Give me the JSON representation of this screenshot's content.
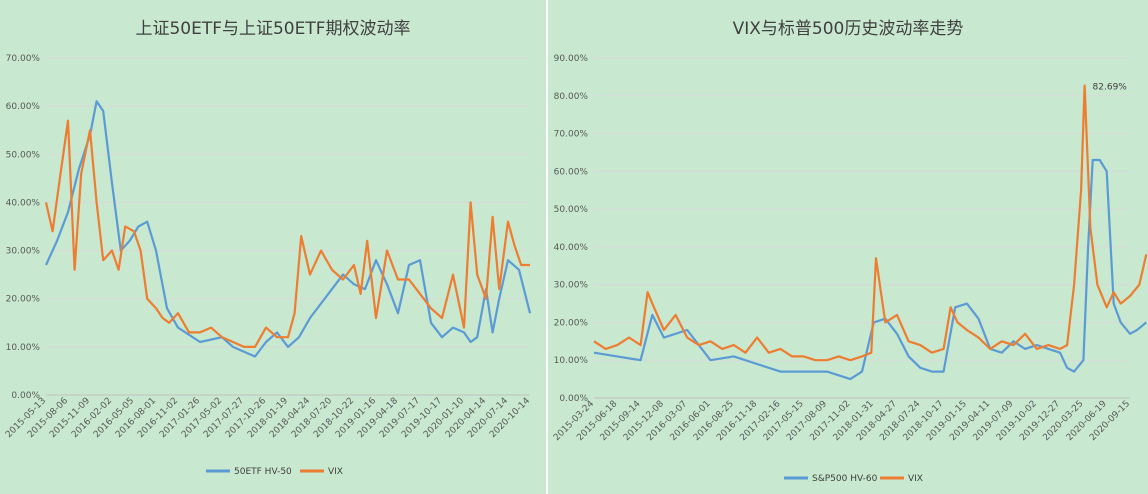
{
  "chart_data": [
    {
      "type": "line",
      "title": "上证50ETF与上证50ETF期权波动率",
      "ylim": [
        0,
        70
      ],
      "ytick_labels": [
        "0.00%",
        "10.00%",
        "20.00%",
        "30.00%",
        "40.00%",
        "50.00%",
        "60.00%",
        "70.00%"
      ],
      "xtick_labels": [
        "2015-05-13",
        "2015-08-06",
        "2015-11-09",
        "2016-02-02",
        "2016-05-05",
        "2016-08-01",
        "2016-11-02",
        "2017-01-26",
        "2017-05-02",
        "2017-07-27",
        "2017-10-26",
        "2018-01-19",
        "2018-04-24",
        "2018-07-20",
        "2018-10-22",
        "2019-01-16",
        "2019-04-18",
        "2019-07-17",
        "2019-10-17",
        "2020-01-10",
        "2020-04-14",
        "2020-07-14",
        "2020-10-14"
      ],
      "grid": true,
      "legend_position": "bottom",
      "series": [
        {
          "name": "50ETF HV-50",
          "color": "#5b9bd5",
          "x": [
            0,
            0.5,
            1,
            1.5,
            2,
            2.3,
            2.6,
            3,
            3.4,
            3.8,
            4.2,
            4.6,
            5,
            5.5,
            6,
            7,
            8,
            8.5,
            9,
            9.5,
            10,
            10.5,
            11,
            11.5,
            12,
            12.5,
            13,
            13.5,
            14,
            14.5,
            15,
            15.5,
            16,
            16.5,
            17,
            17.5,
            18,
            18.5,
            19,
            19.3,
            19.6,
            20,
            20.3,
            20.6,
            21,
            21.5,
            22
          ],
          "y": [
            27,
            32,
            38,
            47,
            54,
            61,
            59,
            44,
            30,
            32,
            35,
            36,
            30,
            18,
            14,
            11,
            12,
            10,
            9,
            8,
            11,
            13,
            10,
            12,
            16,
            19,
            22,
            25,
            23,
            22,
            28,
            23,
            17,
            27,
            28,
            15,
            12,
            14,
            13,
            11,
            12,
            22,
            13,
            20,
            28,
            26,
            17
          ]
        },
        {
          "name": "VIX",
          "color": "#ed7d31",
          "x": [
            0,
            0.3,
            0.6,
            1,
            1.3,
            1.6,
            2,
            2.3,
            2.6,
            3,
            3.3,
            3.6,
            4,
            4.3,
            4.6,
            5,
            5.3,
            5.6,
            6,
            6.5,
            7,
            7.5,
            8,
            8.5,
            9,
            9.5,
            10,
            10.5,
            11,
            11.3,
            11.6,
            12,
            12.5,
            13,
            13.5,
            14,
            14.3,
            14.6,
            15,
            15.5,
            16,
            16.5,
            17,
            17.5,
            18,
            18.5,
            19,
            19.3,
            19.6,
            20,
            20.3,
            20.6,
            21,
            21.3,
            21.6,
            22
          ],
          "y": [
            40,
            34,
            44,
            57,
            26,
            46,
            55,
            40,
            28,
            30,
            26,
            35,
            34,
            30,
            20,
            18,
            16,
            15,
            17,
            13,
            13,
            14,
            12,
            11,
            10,
            10,
            14,
            12,
            12,
            17,
            33,
            25,
            30,
            26,
            24,
            27,
            21,
            32,
            16,
            30,
            24,
            24,
            21,
            18,
            16,
            25,
            14,
            40,
            25,
            20,
            37,
            22,
            36,
            31,
            27,
            27
          ]
        }
      ]
    },
    {
      "type": "line",
      "title": "VIX与标普500历史波动率走势",
      "ylim": [
        0,
        90
      ],
      "ytick_labels": [
        "0.00%",
        "10.00%",
        "20.00%",
        "30.00%",
        "40.00%",
        "50.00%",
        "60.00%",
        "70.00%",
        "80.00%",
        "90.00%"
      ],
      "xtick_labels": [
        "2015-03-24",
        "2015-06-18",
        "2015-09-14",
        "2015-12-08",
        "2016-03-07",
        "2016-06-01",
        "2016-08-25",
        "2016-11-18",
        "2017-02-16",
        "2017-05-15",
        "2017-08-09",
        "2017-11-02",
        "2018-01-31",
        "2018-04-27",
        "2018-07-24",
        "2018-10-17",
        "2019-01-15",
        "2019-04-11",
        "2019-07-09",
        "2019-10-02",
        "2019-12-27",
        "2020-03-25",
        "2020-06-19",
        "2020-09-15"
      ],
      "grid": true,
      "legend_position": "bottom",
      "annotations": [
        {
          "text": "82.69%",
          "x": 21.05,
          "y": 82.69
        }
      ],
      "series": [
        {
          "name": "S&P500 HV-60",
          "color": "#5b9bd5",
          "x": [
            0,
            1,
            2,
            2.5,
            3,
            4,
            5,
            6,
            7,
            8,
            9,
            10,
            10.5,
            11,
            11.5,
            12,
            12.5,
            13,
            13.5,
            14,
            14.5,
            15,
            15.5,
            16,
            16.5,
            17,
            17.5,
            18,
            18.5,
            19,
            19.5,
            20,
            20.3,
            20.6,
            21,
            21.2,
            21.4,
            21.7,
            22,
            22.3,
            22.6,
            23,
            23.3,
            23.7
          ],
          "y": [
            12,
            11,
            10,
            22,
            16,
            18,
            10,
            11,
            9,
            7,
            7,
            7,
            6,
            5,
            7,
            20,
            21,
            17,
            11,
            8,
            7,
            7,
            24,
            25,
            21,
            13,
            12,
            15,
            13,
            14,
            13,
            12,
            8,
            7,
            10,
            40,
            63,
            63,
            60,
            25,
            20,
            17,
            18,
            20
          ]
        },
        {
          "name": "VIX",
          "color": "#ed7d31",
          "x": [
            0,
            0.5,
            1,
            1.5,
            2,
            2.3,
            2.5,
            3,
            3.5,
            4,
            4.5,
            5,
            5.5,
            6,
            6.5,
            7,
            7.5,
            8,
            8.5,
            9,
            9.5,
            10,
            10.5,
            11,
            11.5,
            11.9,
            12.1,
            12.5,
            13,
            13.5,
            14,
            14.5,
            15,
            15.3,
            15.6,
            16,
            16.5,
            17,
            17.5,
            18,
            18.5,
            19,
            19.5,
            20,
            20.3,
            20.6,
            20.9,
            21.05,
            21.3,
            21.6,
            22,
            22.3,
            22.6,
            23,
            23.4,
            23.7
          ],
          "y": [
            15,
            13,
            14,
            16,
            14,
            28,
            25,
            18,
            22,
            16,
            14,
            15,
            13,
            14,
            12,
            16,
            12,
            13,
            11,
            11,
            10,
            10,
            11,
            10,
            11,
            12,
            37,
            20,
            22,
            15,
            14,
            12,
            13,
            24,
            20,
            18,
            16,
            13,
            15,
            14,
            17,
            13,
            14,
            13,
            14,
            30,
            55,
            82.69,
            45,
            30,
            24,
            28,
            25,
            27,
            30,
            38
          ]
        }
      ]
    }
  ]
}
